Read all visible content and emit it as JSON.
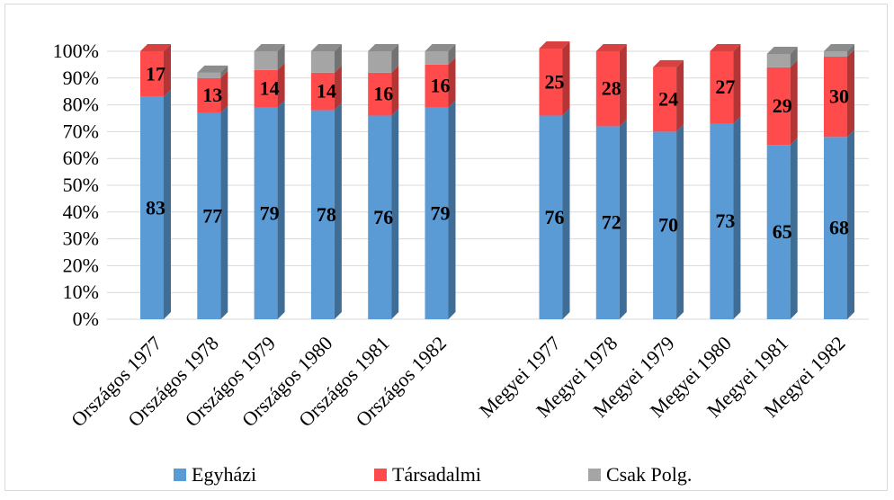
{
  "chart_data": {
    "type": "bar",
    "stacked": true,
    "percent": true,
    "categories": [
      "Országos 1977",
      "Országos 1978",
      "Országos 1979",
      "Országos 1980",
      "Országos 1981",
      "Országos 1982",
      "Megyei 1977",
      "Megyei 1978",
      "Megyei 1979",
      "Megyei 1980",
      "Megyei 1981",
      "Megyei 1982"
    ],
    "category_gap_after_index": 5,
    "series": [
      {
        "name": "Egyházi",
        "color": "#5b9bd5",
        "values": [
          83,
          77,
          79,
          78,
          76,
          79,
          76,
          72,
          70,
          73,
          65,
          68
        ],
        "labels": [
          "83",
          "77",
          "79",
          "78",
          "76",
          "79",
          "76",
          "72",
          "70",
          "73",
          "65",
          "68"
        ]
      },
      {
        "name": "Társadalmi",
        "color": "#ff4b4b",
        "values": [
          17,
          13,
          14,
          14,
          16,
          16,
          25,
          28,
          24,
          27,
          29,
          30
        ],
        "labels": [
          "17",
          "13",
          "14",
          "14",
          "16",
          "16",
          "25",
          "28",
          "24",
          "27",
          "29",
          "30"
        ]
      },
      {
        "name": "Csak Polg.",
        "color": "#a5a5a5",
        "values": [
          0,
          2,
          7,
          8,
          8,
          5,
          0,
          0,
          0,
          0,
          5,
          2
        ],
        "labels": []
      }
    ],
    "ylim": [
      0,
      100
    ],
    "yticks": [
      "0%",
      "10%",
      "20%",
      "30%",
      "40%",
      "50%",
      "60%",
      "70%",
      "80%",
      "90%",
      "100%"
    ],
    "grid": true,
    "legend_position": "bottom"
  }
}
